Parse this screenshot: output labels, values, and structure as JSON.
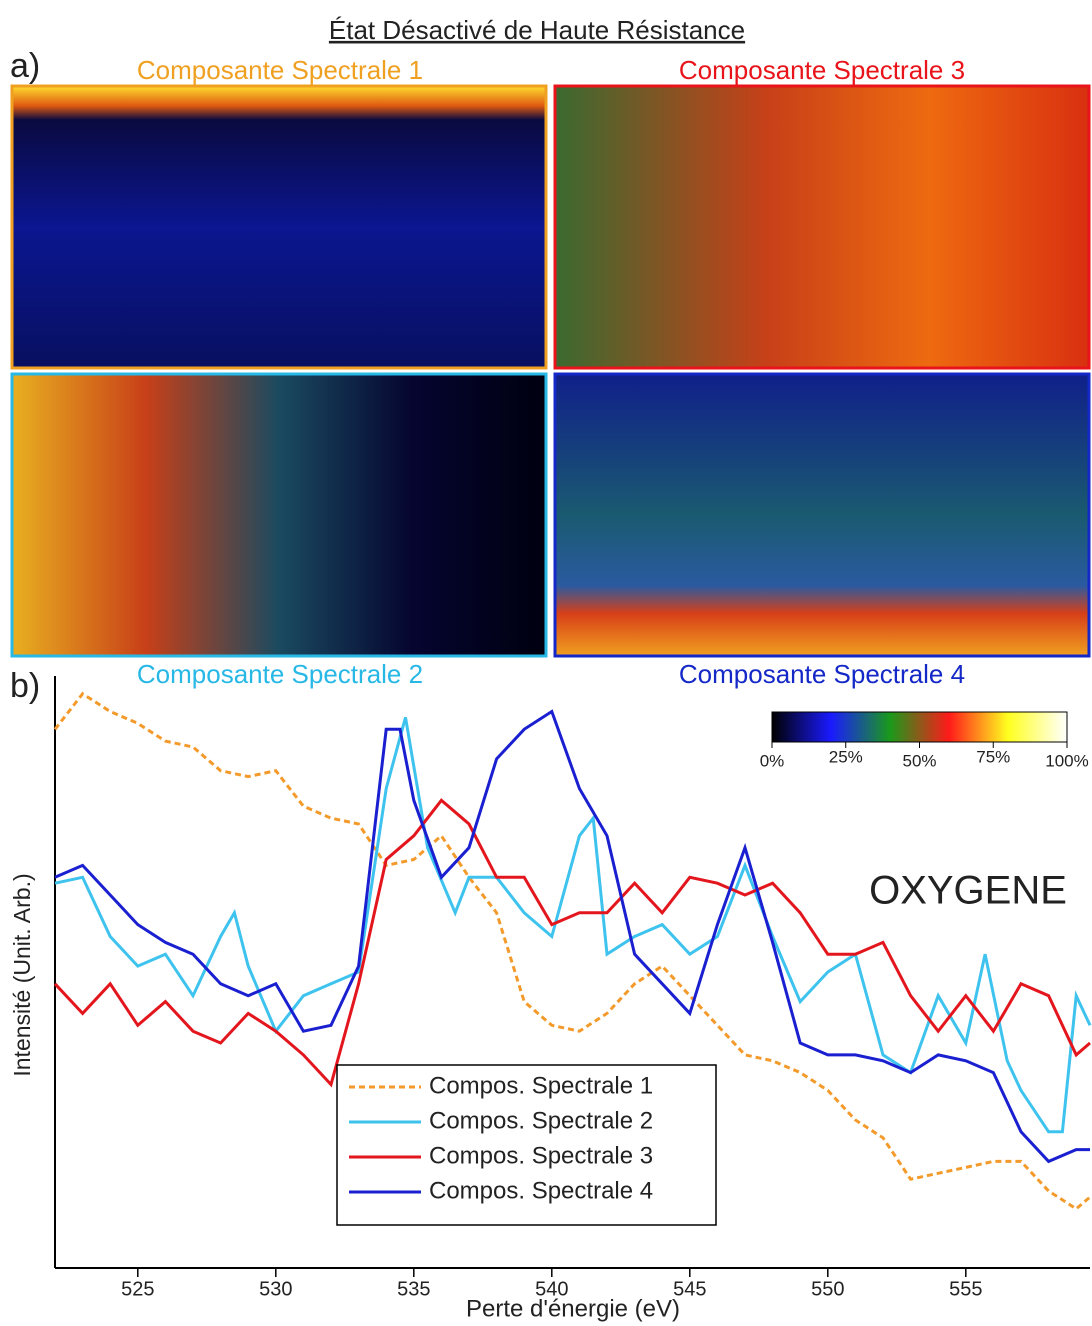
{
  "figure_title": "État Désactivé de Haute Résistance",
  "panel_labels": [
    "a)",
    "b)"
  ],
  "maps": [
    {
      "title": "Composante Spectrale 1",
      "color": "#f0a020"
    },
    {
      "title": "Composante Spectrale 3",
      "color": "#e8141a"
    },
    {
      "title": "Composante Spectrale 2",
      "color": "#27b8e6"
    },
    {
      "title": "Composante Spectrale 4",
      "color": "#1428c8"
    }
  ],
  "colorbar": {
    "colors": [
      "#000000",
      "#1a1aff",
      "#1a9a1a",
      "#ff1a1a",
      "#ffff20",
      "#ffffff"
    ],
    "lim": [
      0,
      100
    ],
    "ticks": [
      {
        "value": 0,
        "label": "0%"
      },
      {
        "value": 25,
        "label": "25%"
      },
      {
        "value": 50,
        "label": "50%"
      },
      {
        "value": 75,
        "label": "75%"
      },
      {
        "value": 100,
        "label": "100%"
      }
    ]
  },
  "chart_data": {
    "type": "line",
    "xlabel": "Perte d'énergie (eV)",
    "ylabel": "Intensité (Unit. Arb.)",
    "annotation": "OXYGENE",
    "xlim": [
      522,
      559.5
    ],
    "ylim": [
      0,
      100
    ],
    "xticks": [
      525,
      530,
      535,
      540,
      545,
      550,
      555
    ],
    "legend": "bottom-center",
    "series": [
      {
        "name": "Compos. Spectrale 1",
        "color": "#f39a2b",
        "dash": true,
        "x": [
          522,
          523,
          524,
          525,
          526,
          527,
          528,
          529,
          530,
          531,
          532,
          533,
          534,
          535,
          536,
          537,
          538,
          539,
          540,
          541,
          542,
          543,
          544,
          545,
          546,
          547,
          548,
          549,
          550,
          551,
          552,
          553,
          554,
          555,
          556,
          557,
          558,
          559,
          559.5
        ],
        "values": [
          91,
          97,
          94,
          92,
          89,
          88,
          84,
          83,
          84,
          78,
          76,
          75,
          68,
          69,
          73,
          66,
          60,
          45,
          41,
          40,
          43,
          48,
          51,
          46,
          41,
          36,
          35,
          33,
          30,
          25,
          22,
          15,
          16,
          17,
          18,
          18,
          13,
          10,
          12
        ]
      },
      {
        "name": "Compos. Spectrale 2",
        "color": "#3ec3ee",
        "dash": false,
        "x": [
          522,
          523,
          524,
          525,
          526,
          527,
          528,
          528.5,
          529,
          530,
          531,
          532,
          533,
          534,
          534.7,
          535.5,
          536.5,
          537,
          538,
          539,
          540,
          541,
          541.5,
          542,
          543,
          544,
          545,
          546,
          547,
          548,
          549,
          550,
          551,
          552,
          553,
          554,
          555,
          555.7,
          556.5,
          557,
          558,
          558.5,
          559,
          559.5
        ],
        "values": [
          65,
          66,
          56,
          51,
          53,
          46,
          56,
          60,
          51,
          40,
          46,
          48,
          50,
          81,
          93,
          71,
          60,
          66,
          66,
          60,
          56,
          73,
          76,
          53,
          56,
          58,
          53,
          56,
          68,
          56,
          45,
          50,
          53,
          36,
          33,
          46,
          38,
          53,
          35,
          30,
          23,
          23,
          46,
          41
        ]
      },
      {
        "name": "Compos. Spectrale 3",
        "color": "#e3161d",
        "dash": false,
        "x": [
          522,
          523,
          524,
          525,
          526,
          527,
          528,
          529,
          530,
          531,
          532,
          533,
          534,
          535,
          536,
          537,
          538,
          539,
          540,
          541,
          542,
          543,
          544,
          545,
          546,
          547,
          548,
          549,
          550,
          551,
          552,
          553,
          554,
          555,
          556,
          557,
          558,
          559,
          559.5
        ],
        "values": [
          48,
          43,
          48,
          41,
          45,
          40,
          38,
          43,
          40,
          36,
          31,
          48,
          69,
          73,
          79,
          75,
          66,
          66,
          58,
          60,
          60,
          65,
          60,
          66,
          65,
          63,
          65,
          60,
          53,
          53,
          55,
          46,
          40,
          46,
          40,
          48,
          46,
          36,
          38
        ]
      },
      {
        "name": "Compos. Spectrale 4",
        "color": "#1a1fd0",
        "dash": false,
        "x": [
          522,
          523,
          524,
          525,
          526,
          527,
          528,
          529,
          530,
          531,
          532,
          533,
          534,
          534.5,
          535,
          536,
          537,
          538,
          539,
          540,
          541,
          542,
          543,
          544,
          545,
          546,
          547,
          548,
          549,
          550,
          551,
          552,
          553,
          554,
          555,
          556,
          557,
          558,
          559,
          559.5
        ],
        "values": [
          66,
          68,
          63,
          58,
          55,
          53,
          48,
          46,
          48,
          40,
          41,
          51,
          91,
          91,
          79,
          66,
          71,
          86,
          91,
          94,
          81,
          73,
          53,
          48,
          43,
          58,
          71,
          55,
          38,
          36,
          36,
          35,
          33,
          36,
          35,
          33,
          23,
          18,
          20,
          20
        ]
      }
    ]
  }
}
